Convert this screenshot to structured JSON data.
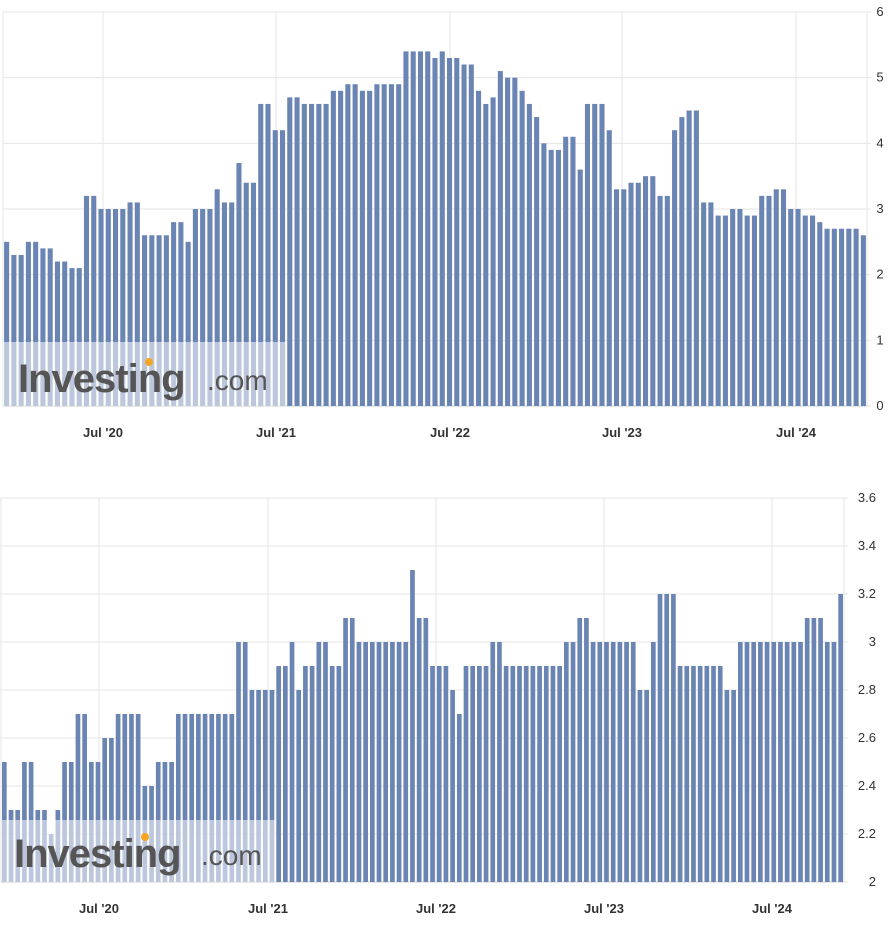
{
  "watermark": {
    "word": "Investing",
    "suffix": ".com"
  },
  "colors": {
    "bar": "#6a84b4",
    "bar_edge": "#5a74a4",
    "grid": "#e6e6e6",
    "axis": "#cfcfcf",
    "accent": "#f5a623"
  },
  "chart_data": [
    {
      "type": "bar",
      "ylim": [
        0,
        6
      ],
      "yticks": [
        "0",
        "1",
        "2",
        "3",
        "4",
        "5",
        "6"
      ],
      "xticks": [
        "Jul '20",
        "Jul '21",
        "Jul '22",
        "Jul '23",
        "Jul '24"
      ],
      "grid": true,
      "values": [
        2.5,
        2.3,
        2.3,
        2.5,
        2.5,
        2.4,
        2.4,
        2.2,
        2.2,
        2.1,
        2.1,
        3.2,
        3.2,
        3.0,
        3.0,
        3.0,
        3.0,
        3.1,
        3.1,
        2.6,
        2.6,
        2.6,
        2.6,
        2.8,
        2.8,
        2.5,
        3.0,
        3.0,
        3.0,
        3.3,
        3.1,
        3.1,
        3.7,
        3.4,
        3.4,
        4.6,
        4.6,
        4.2,
        4.2,
        4.7,
        4.7,
        4.6,
        4.6,
        4.6,
        4.6,
        4.8,
        4.8,
        4.9,
        4.9,
        4.8,
        4.8,
        4.9,
        4.9,
        4.9,
        4.9,
        5.4,
        5.4,
        5.4,
        5.4,
        5.3,
        5.4,
        5.3,
        5.3,
        5.2,
        5.2,
        4.8,
        4.6,
        4.7,
        5.1,
        5.0,
        5.0,
        4.8,
        4.6,
        4.4,
        4.0,
        3.9,
        3.9,
        4.1,
        4.1,
        3.6,
        4.6,
        4.6,
        4.6,
        4.2,
        3.3,
        3.3,
        3.4,
        3.4,
        3.5,
        3.5,
        3.2,
        3.2,
        4.2,
        4.4,
        4.5,
        4.5,
        3.1,
        3.1,
        2.9,
        2.9,
        3.0,
        3.0,
        2.9,
        2.9,
        3.2,
        3.2,
        3.3,
        3.3,
        3.0,
        3.0,
        2.9,
        2.9,
        2.8,
        2.7,
        2.7,
        2.7,
        2.7,
        2.7,
        2.6
      ]
    },
    {
      "type": "bar",
      "ylim": [
        2.0,
        3.6
      ],
      "yticks": [
        "2",
        "2.2",
        "2.4",
        "2.6",
        "2.8",
        "3",
        "3.2",
        "3.4",
        "3.6"
      ],
      "xticks": [
        "Jul '20",
        "Jul '21",
        "Jul '22",
        "Jul '23",
        "Jul '24"
      ],
      "grid": true,
      "values": [
        2.5,
        2.3,
        2.3,
        2.5,
        2.5,
        2.3,
        2.3,
        2.2,
        2.3,
        2.5,
        2.5,
        2.7,
        2.7,
        2.5,
        2.5,
        2.6,
        2.6,
        2.7,
        2.7,
        2.7,
        2.7,
        2.4,
        2.4,
        2.5,
        2.5,
        2.5,
        2.7,
        2.7,
        2.7,
        2.7,
        2.7,
        2.7,
        2.7,
        2.7,
        2.7,
        3.0,
        3.0,
        2.8,
        2.8,
        2.8,
        2.8,
        2.9,
        2.9,
        3.0,
        2.8,
        2.9,
        2.9,
        3.0,
        3.0,
        2.9,
        2.9,
        3.1,
        3.1,
        3.0,
        3.0,
        3.0,
        3.0,
        3.0,
        3.0,
        3.0,
        3.0,
        3.3,
        3.1,
        3.1,
        2.9,
        2.9,
        2.9,
        2.8,
        2.7,
        2.9,
        2.9,
        2.9,
        2.9,
        3.0,
        3.0,
        2.9,
        2.9,
        2.9,
        2.9,
        2.9,
        2.9,
        2.9,
        2.9,
        2.9,
        3.0,
        3.0,
        3.1,
        3.1,
        3.0,
        3.0,
        3.0,
        3.0,
        3.0,
        3.0,
        3.0,
        2.8,
        2.8,
        3.0,
        3.2,
        3.2,
        3.2,
        2.9,
        2.9,
        2.9,
        2.9,
        2.9,
        2.9,
        2.9,
        2.8,
        2.8,
        3.0,
        3.0,
        3.0,
        3.0,
        3.0,
        3.0,
        3.0,
        3.0,
        3.0,
        3.0,
        3.1,
        3.1,
        3.1,
        3.0,
        3.0,
        3.2
      ]
    }
  ]
}
